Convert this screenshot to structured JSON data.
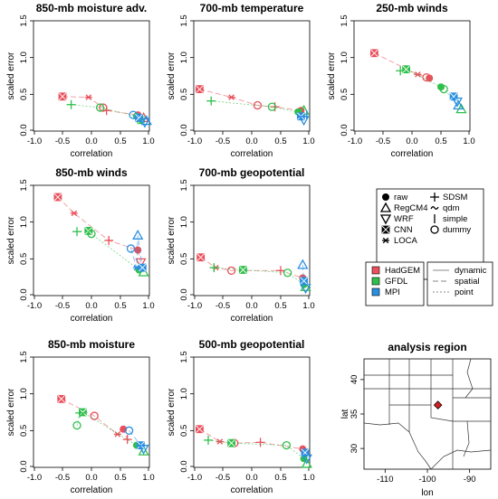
{
  "colors": {
    "HadGEM": "#e8505b",
    "GFDL": "#2fbf4a",
    "MPI": "#2a8fe0"
  },
  "chart_data": [
    {
      "type": "scatter",
      "title": "850-mb moisture adv.",
      "xlabel": "correlation",
      "ylabel": "scaled error",
      "xlim": [
        -1.0,
        1.0
      ],
      "ylim": [
        0.0,
        1.5
      ],
      "xticks": [
        "-1.0",
        "-0.5",
        "0.0",
        "0.5",
        "1.0"
      ],
      "yticks": [
        "0.0",
        "0.5",
        "1.0",
        "1.5"
      ],
      "series": [
        {
          "name": "HadGEM",
          "points": [
            {
              "x": -0.5,
              "y": 0.47,
              "m": "CNN"
            },
            {
              "x": -0.05,
              "y": 0.46,
              "m": "LOCA"
            },
            {
              "x": 0.26,
              "y": 0.28,
              "m": "SDSM"
            },
            {
              "x": 0.2,
              "y": 0.32,
              "m": "dummy"
            },
            {
              "x": 0.8,
              "y": 0.22,
              "m": "raw"
            },
            {
              "x": 0.9,
              "y": 0.18,
              "m": "RegCM4"
            }
          ]
        },
        {
          "name": "GFDL",
          "points": [
            {
              "x": -0.35,
              "y": 0.36,
              "m": "SDSM"
            },
            {
              "x": 0.15,
              "y": 0.32,
              "m": "dummy"
            },
            {
              "x": 0.78,
              "y": 0.2,
              "m": "raw"
            },
            {
              "x": 0.85,
              "y": 0.15,
              "m": "CNN"
            }
          ]
        },
        {
          "name": "MPI",
          "points": [
            {
              "x": 0.72,
              "y": 0.22,
              "m": "dummy"
            },
            {
              "x": 0.82,
              "y": 0.18,
              "m": "CNN"
            },
            {
              "x": 0.92,
              "y": 0.12,
              "m": "WRF"
            },
            {
              "x": 0.95,
              "y": 0.14,
              "m": "RegCM4"
            }
          ]
        }
      ]
    },
    {
      "type": "scatter",
      "title": "700-mb temperature",
      "xlabel": "correlation",
      "ylabel": "scaled error",
      "xlim": [
        -1.0,
        1.0
      ],
      "ylim": [
        0.0,
        1.5
      ],
      "xticks": [
        "-1.0",
        "-0.5",
        "0.0",
        "0.5",
        "1.0"
      ],
      "yticks": [
        "0.0",
        "0.5",
        "1.0",
        "1.5"
      ],
      "series": [
        {
          "name": "HadGEM",
          "points": [
            {
              "x": -0.9,
              "y": 0.57,
              "m": "CNN"
            },
            {
              "x": -0.35,
              "y": 0.46,
              "m": "LOCA"
            },
            {
              "x": 0.4,
              "y": 0.33,
              "m": "SDSM"
            },
            {
              "x": 0.1,
              "y": 0.35,
              "m": "dummy"
            },
            {
              "x": 0.85,
              "y": 0.28,
              "m": "raw"
            }
          ]
        },
        {
          "name": "GFDL",
          "points": [
            {
              "x": -0.7,
              "y": 0.41,
              "m": "SDSM"
            },
            {
              "x": 0.35,
              "y": 0.33,
              "m": "dummy"
            },
            {
              "x": 0.8,
              "y": 0.26,
              "m": "raw"
            },
            {
              "x": 0.9,
              "y": 0.28,
              "m": "RegCM4"
            }
          ]
        },
        {
          "name": "MPI",
          "points": [
            {
              "x": 0.85,
              "y": 0.2,
              "m": "CNN"
            },
            {
              "x": 0.9,
              "y": 0.15,
              "m": "WRF"
            },
            {
              "x": 0.95,
              "y": 0.22,
              "m": "simple"
            }
          ]
        }
      ]
    },
    {
      "type": "scatter",
      "title": "250-mb winds",
      "xlabel": "correlation",
      "ylabel": "scaled error",
      "xlim": [
        -1.0,
        1.0
      ],
      "ylim": [
        0.0,
        1.5
      ],
      "xticks": [
        "-1.0",
        "-0.5",
        "0.0",
        "0.5",
        "1.0"
      ],
      "yticks": [
        "0.0",
        "0.5",
        "1.0",
        "1.5"
      ],
      "series": [
        {
          "name": "HadGEM",
          "points": [
            {
              "x": -0.65,
              "y": 1.06,
              "m": "CNN"
            },
            {
              "x": 0.1,
              "y": 0.77,
              "m": "LOCA"
            },
            {
              "x": 0.3,
              "y": 0.72,
              "m": "raw"
            },
            {
              "x": 0.25,
              "y": 0.73,
              "m": "dummy"
            }
          ]
        },
        {
          "name": "GFDL",
          "points": [
            {
              "x": -0.2,
              "y": 0.82,
              "m": "SDSM"
            },
            {
              "x": -0.1,
              "y": 0.84,
              "m": "CNN"
            },
            {
              "x": 0.5,
              "y": 0.6,
              "m": "raw"
            },
            {
              "x": 0.55,
              "y": 0.57,
              "m": "dummy"
            },
            {
              "x": 0.85,
              "y": 0.3,
              "m": "RegCM4"
            }
          ]
        },
        {
          "name": "MPI",
          "points": [
            {
              "x": 0.72,
              "y": 0.47,
              "m": "CNN"
            },
            {
              "x": 0.78,
              "y": 0.4,
              "m": "WRF"
            },
            {
              "x": 0.8,
              "y": 0.35,
              "m": "RegCM4"
            }
          ]
        }
      ]
    },
    {
      "type": "scatter",
      "title": "850-mb winds",
      "xlabel": "correlation",
      "ylabel": "scaled error",
      "xlim": [
        -1.0,
        1.0
      ],
      "ylim": [
        0.0,
        1.5
      ],
      "xticks": [
        "-1.0",
        "-0.5",
        "0.0",
        "0.5",
        "1.0"
      ],
      "yticks": [
        "0.0",
        "0.5",
        "1.0",
        "1.5"
      ],
      "series": [
        {
          "name": "HadGEM",
          "points": [
            {
              "x": -0.58,
              "y": 1.34,
              "m": "CNN"
            },
            {
              "x": -0.3,
              "y": 1.12,
              "m": "LOCA"
            },
            {
              "x": 0.3,
              "y": 0.75,
              "m": "SDSM"
            },
            {
              "x": 0.8,
              "y": 0.62,
              "m": "raw"
            },
            {
              "x": 0.85,
              "y": 0.45,
              "m": "WRF"
            }
          ]
        },
        {
          "name": "GFDL",
          "points": [
            {
              "x": -0.25,
              "y": 0.87,
              "m": "SDSM"
            },
            {
              "x": -0.05,
              "y": 0.88,
              "m": "CNN"
            },
            {
              "x": 0.0,
              "y": 0.84,
              "m": "dummy"
            },
            {
              "x": 0.82,
              "y": 0.35,
              "m": "raw"
            },
            {
              "x": 0.9,
              "y": 0.32,
              "m": "RegCM4"
            }
          ]
        },
        {
          "name": "MPI",
          "points": [
            {
              "x": 0.68,
              "y": 0.64,
              "m": "dummy"
            },
            {
              "x": 0.8,
              "y": 0.82,
              "m": "RegCM4"
            },
            {
              "x": 0.78,
              "y": 0.38,
              "m": "LOCA"
            },
            {
              "x": 0.88,
              "y": 0.38,
              "m": "CNN"
            }
          ]
        }
      ]
    },
    {
      "type": "scatter",
      "title": "700-mb geopotential",
      "xlabel": "correlation",
      "ylabel": "scaled error",
      "xlim": [
        -1.0,
        1.0
      ],
      "ylim": [
        0.0,
        1.5
      ],
      "xticks": [
        "-1.0",
        "-0.5",
        "0.0",
        "0.5",
        "1.0"
      ],
      "yticks": [
        "0.0",
        "0.5",
        "1.0",
        "1.5"
      ],
      "series": [
        {
          "name": "HadGEM",
          "points": [
            {
              "x": -0.88,
              "y": 0.52,
              "m": "CNN"
            },
            {
              "x": -0.62,
              "y": 0.38,
              "m": "LOCA"
            },
            {
              "x": -0.35,
              "y": 0.34,
              "m": "dummy"
            },
            {
              "x": 0.5,
              "y": 0.34,
              "m": "SDSM"
            },
            {
              "x": 0.88,
              "y": 0.24,
              "m": "raw"
            }
          ]
        },
        {
          "name": "GFDL",
          "points": [
            {
              "x": -0.65,
              "y": 0.38,
              "m": "SDSM"
            },
            {
              "x": -0.15,
              "y": 0.35,
              "m": "CNN"
            },
            {
              "x": 0.62,
              "y": 0.31,
              "m": "dummy"
            },
            {
              "x": 0.9,
              "y": 0.15,
              "m": "raw"
            },
            {
              "x": 0.93,
              "y": 0.12,
              "m": "RegCM4"
            }
          ]
        },
        {
          "name": "MPI",
          "points": [
            {
              "x": 0.88,
              "y": 0.42,
              "m": "RegCM4"
            },
            {
              "x": 0.9,
              "y": 0.2,
              "m": "CNN"
            },
            {
              "x": 0.93,
              "y": 0.1,
              "m": "WRF"
            }
          ]
        }
      ]
    },
    {
      "type": "scatter",
      "title": "850-mb moisture",
      "xlabel": "correlation",
      "ylabel": "scaled error",
      "xlim": [
        -1.0,
        1.0
      ],
      "ylim": [
        0.0,
        1.5
      ],
      "xticks": [
        "-1.0",
        "-0.5",
        "0.0",
        "0.5",
        "1.0"
      ],
      "yticks": [
        "0.0",
        "0.5",
        "1.0",
        "1.5"
      ],
      "series": [
        {
          "name": "HadGEM",
          "points": [
            {
              "x": -0.52,
              "y": 0.93,
              "m": "CNN"
            },
            {
              "x": 0.05,
              "y": 0.7,
              "m": "dummy"
            },
            {
              "x": 0.55,
              "y": 0.52,
              "m": "raw"
            },
            {
              "x": 0.45,
              "y": 0.45,
              "m": "LOCA"
            },
            {
              "x": 0.62,
              "y": 0.38,
              "m": "SDSM"
            }
          ]
        },
        {
          "name": "GFDL",
          "points": [
            {
              "x": -0.15,
              "y": 0.75,
              "m": "CNN"
            },
            {
              "x": -0.2,
              "y": 0.74,
              "m": "SDSM"
            },
            {
              "x": -0.25,
              "y": 0.57,
              "m": "dummy"
            },
            {
              "x": 0.78,
              "y": 0.3,
              "m": "raw"
            },
            {
              "x": 0.9,
              "y": 0.22,
              "m": "RegCM4"
            }
          ]
        },
        {
          "name": "MPI",
          "points": [
            {
              "x": 0.65,
              "y": 0.5,
              "m": "dummy"
            },
            {
              "x": 0.85,
              "y": 0.3,
              "m": "CNN"
            },
            {
              "x": 0.9,
              "y": 0.25,
              "m": "WRF"
            }
          ]
        }
      ]
    },
    {
      "type": "scatter",
      "title": "500-mb geopotential",
      "xlabel": "correlation",
      "ylabel": "scaled error",
      "xlim": [
        -1.0,
        1.0
      ],
      "ylim": [
        0.0,
        1.5
      ],
      "xticks": [
        "-1.0",
        "-0.5",
        "0.0",
        "0.5",
        "1.0"
      ],
      "yticks": [
        "0.0",
        "0.5",
        "1.0",
        "1.5"
      ],
      "series": [
        {
          "name": "HadGEM",
          "points": [
            {
              "x": -0.9,
              "y": 0.52,
              "m": "CNN"
            },
            {
              "x": -0.55,
              "y": 0.35,
              "m": "LOCA"
            },
            {
              "x": -0.3,
              "y": 0.33,
              "m": "dummy"
            },
            {
              "x": 0.15,
              "y": 0.34,
              "m": "SDSM"
            },
            {
              "x": 0.88,
              "y": 0.25,
              "m": "raw"
            }
          ]
        },
        {
          "name": "GFDL",
          "points": [
            {
              "x": -0.75,
              "y": 0.37,
              "m": "SDSM"
            },
            {
              "x": -0.35,
              "y": 0.33,
              "m": "CNN"
            },
            {
              "x": 0.6,
              "y": 0.3,
              "m": "dummy"
            },
            {
              "x": 0.9,
              "y": 0.12,
              "m": "raw"
            },
            {
              "x": 0.95,
              "y": 0.05,
              "m": "RegCM4"
            }
          ]
        },
        {
          "name": "MPI",
          "points": [
            {
              "x": 0.92,
              "y": 0.2,
              "m": "CNN"
            },
            {
              "x": 0.95,
              "y": 0.12,
              "m": "WRF"
            }
          ]
        }
      ]
    }
  ],
  "legend_methods": [
    {
      "label": "raw",
      "m": "raw"
    },
    {
      "label": "RegCM4",
      "m": "RegCM4"
    },
    {
      "label": "WRF",
      "m": "WRF"
    },
    {
      "label": "CNN",
      "m": "CNN"
    },
    {
      "label": "LOCA",
      "m": "LOCA"
    },
    {
      "label": "SDSM",
      "m": "SDSM"
    },
    {
      "label": "qdm",
      "m": "qdm"
    },
    {
      "label": "simple",
      "m": "simple"
    },
    {
      "label": "dummy",
      "m": "dummy"
    }
  ],
  "legend_models": [
    "HadGEM",
    "GFDL",
    "MPI"
  ],
  "legend_lines": [
    {
      "label": "dynamic",
      "dash": "none"
    },
    {
      "label": "spatial",
      "dash": "6,3"
    },
    {
      "label": "point",
      "dash": "2,2"
    }
  ],
  "map": {
    "title": "analysis region",
    "xlabel": "lon",
    "ylabel": "lat",
    "xticks": [
      "-110",
      "-100",
      "-90"
    ],
    "yticks": [
      "30",
      "35",
      "40"
    ],
    "xlim": [
      -115,
      -85
    ],
    "ylim": [
      27,
      43
    ],
    "point": {
      "lon": -97.5,
      "lat": 36.3
    }
  }
}
